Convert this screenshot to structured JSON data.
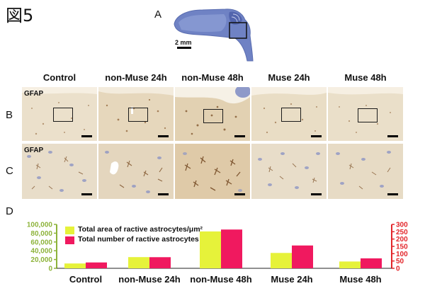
{
  "figure": {
    "title": "図5",
    "panel_a": "A",
    "panel_b": "B",
    "panel_c": "C",
    "panel_d": "D",
    "brain_scale_label": "2 mm",
    "stain_label": "GFAP",
    "columns": [
      "Control",
      "non-Muse 24h",
      "non-Muse 48h",
      "Muse 24h",
      "Muse 48h"
    ]
  },
  "colors": {
    "area_series": "#e6f23a",
    "number_series": "#f0195f",
    "left_axis": "#8db33a",
    "right_axis": "#e3262b",
    "tissue": "#e8dcc6",
    "stain": "#8a5a2e",
    "nuclei": "#8d95c4"
  },
  "chart_data": {
    "type": "bar",
    "categories": [
      "Control",
      "non-Muse 24h",
      "non-Muse 48h",
      "Muse 24h",
      "Muse 48h"
    ],
    "series": [
      {
        "name": "Total area of ractive astrocytes/μm²",
        "axis": "left",
        "values": [
          11000,
          25500,
          84000,
          35000,
          15500
        ]
      },
      {
        "name": "Total number  of ractive astrocytes",
        "axis": "right",
        "values": [
          40,
          76,
          265,
          156,
          68
        ]
      }
    ],
    "y_left": {
      "ylim": [
        0,
        100000
      ],
      "ticks": [
        "0",
        "20,000",
        "40,000",
        "60,000",
        "80,000",
        "100,000"
      ]
    },
    "y_right": {
      "ylim": [
        0,
        300
      ],
      "ticks": [
        "0",
        "50",
        "100",
        "150",
        "200",
        "250",
        "300"
      ]
    },
    "legend_position": "top-left"
  }
}
